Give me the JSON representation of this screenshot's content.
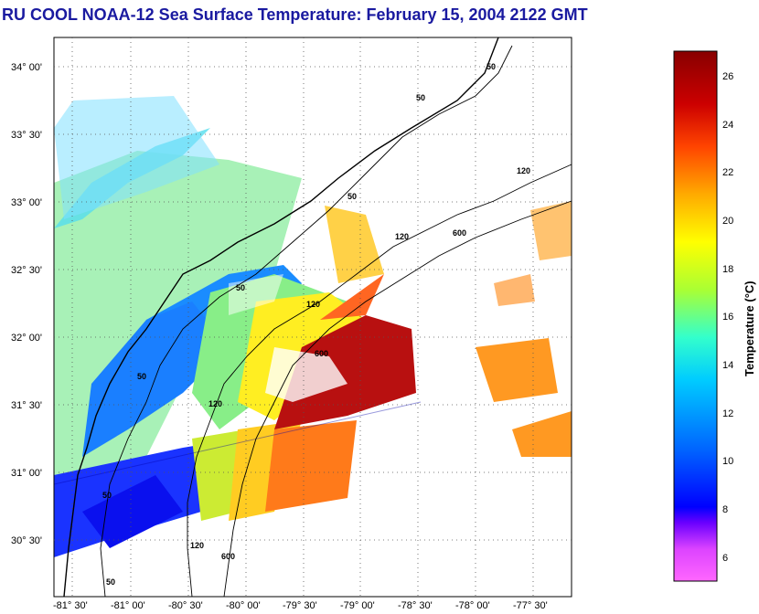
{
  "title": "RU COOL  NOAA-12  Sea Surface Temperature:  February 15, 2004 2122 GMT",
  "map": {
    "lat_labels": [
      "34° 00'",
      "33° 30'",
      "33° 00'",
      "32° 30'",
      "32° 00'",
      "31° 30'",
      "31° 00'",
      "30° 30'"
    ],
    "lon_labels": [
      "-81° 30'",
      "-81° 00'",
      "-80° 30'",
      "-80° 00'",
      "-79° 30'",
      "-79° 00'",
      "-78° 30'",
      "-78° 00'",
      "-77° 30'"
    ],
    "contour_labels": [
      "50",
      "50",
      "50",
      "50",
      "50",
      "50",
      "50",
      "120",
      "120",
      "120",
      "120",
      "120",
      "600",
      "600",
      "600"
    ],
    "colors": {
      "land": "#ffffff",
      "grid": "#555555",
      "coast": "#000000"
    }
  },
  "colorbar": {
    "title": "Temperature (°C)",
    "ticks": [
      "26",
      "24",
      "22",
      "20",
      "18",
      "16",
      "14",
      "12",
      "10",
      "8",
      "6"
    ],
    "tick_values": [
      26,
      24,
      22,
      20,
      18,
      16,
      14,
      12,
      10,
      8,
      6
    ],
    "range": [
      5,
      27
    ],
    "stops": [
      "#ff66ff",
      "#cc33ff",
      "#0000ff",
      "#0066ff",
      "#00ccff",
      "#66ffcc",
      "#ccff33",
      "#ffff00",
      "#ffaa00",
      "#ff3300",
      "#cc0000",
      "#990000"
    ]
  }
}
